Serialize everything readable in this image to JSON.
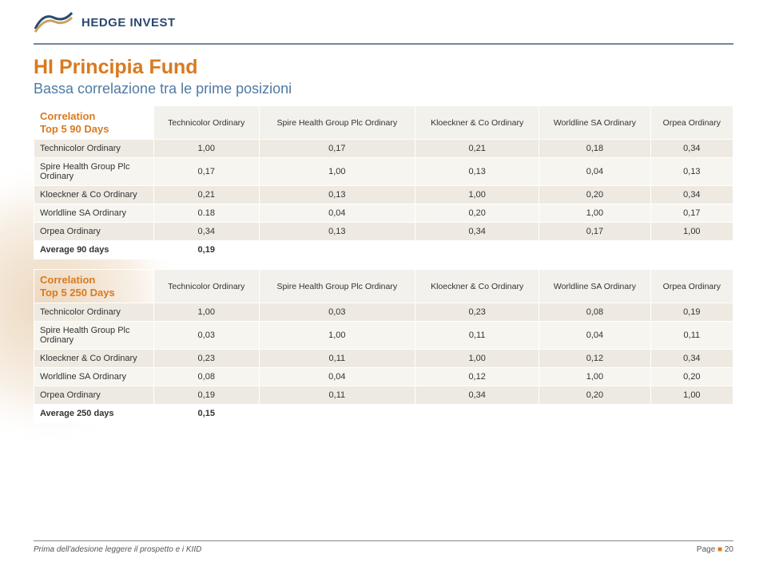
{
  "logo": {
    "text": "HEDGE INVEST"
  },
  "title": "HI Principia Fund",
  "subtitle": "Bassa correlazione tra  le prime posizioni",
  "table90": {
    "section_label_line1": "Correlation",
    "section_label_line2": "Top 5 90 Days",
    "headers": [
      "Technicolor Ordinary",
      "Spire Health Group Plc Ordinary",
      "Kloeckner & Co Ordinary",
      "Worldline SA Ordinary",
      "Orpea Ordinary"
    ],
    "rows": [
      {
        "label": "Technicolor Ordinary",
        "vals": [
          "1,00",
          "0,17",
          "0,21",
          "0,18",
          "0,34"
        ]
      },
      {
        "label": "Spire Health Group Plc  Ordinary",
        "vals": [
          "0,17",
          "1,00",
          "0,13",
          "0,04",
          "0,13"
        ]
      },
      {
        "label": "Kloeckner & Co Ordinary",
        "vals": [
          "0,21",
          "0,13",
          "1,00",
          "0,20",
          "0,34"
        ]
      },
      {
        "label": "Worldline SA  Ordinary",
        "vals": [
          "0.18",
          "0,04",
          "0,20",
          "1,00",
          "0,17"
        ]
      },
      {
        "label": "Orpea Ordinary",
        "vals": [
          "0,34",
          "0,13",
          "0,34",
          "0,17",
          "1,00"
        ]
      }
    ],
    "avg_label": "Average 90 days",
    "avg_val": "0,19"
  },
  "table250": {
    "section_label_line1": "Correlation",
    "section_label_line2": "Top 5 250 Days",
    "headers": [
      "Technicolor Ordinary",
      "Spire Health Group Plc Ordinary",
      "Kloeckner & Co Ordinary",
      "Worldline SA Ordinary",
      "Orpea Ordinary"
    ],
    "rows": [
      {
        "label": "Technicolor Ordinary",
        "vals": [
          "1,00",
          "0,03",
          "0,23",
          "0,08",
          "0,19"
        ]
      },
      {
        "label": "Spire Health Group Plc  Ordinary",
        "vals": [
          "0,03",
          "1,00",
          "0,11",
          "0,04",
          "0,11"
        ]
      },
      {
        "label": "Kloeckner & Co Ordinary",
        "vals": [
          "0,23",
          "0,11",
          "1,00",
          "0,12",
          "0,34"
        ]
      },
      {
        "label": "Worldline SA  Ordinary",
        "vals": [
          "0,08",
          "0,04",
          "0,12",
          "1,00",
          "0,20"
        ]
      },
      {
        "label": "Orpea Ordinary",
        "vals": [
          "0,19",
          "0,11",
          "0,34",
          "0,20",
          "1,00"
        ]
      }
    ],
    "avg_label": "Average 250 days",
    "avg_val": "0,15"
  },
  "footer": {
    "left": "Prima dell'adesione leggere il prospetto e i KIID",
    "page_label": "Page",
    "page_num": "20"
  },
  "colors": {
    "accent_orange": "#d97a1f",
    "accent_blue": "#4f7aa3",
    "row_odd": "#eeeae2",
    "row_even": "#f7f5ef",
    "header_bg": "#f3f1ec"
  }
}
